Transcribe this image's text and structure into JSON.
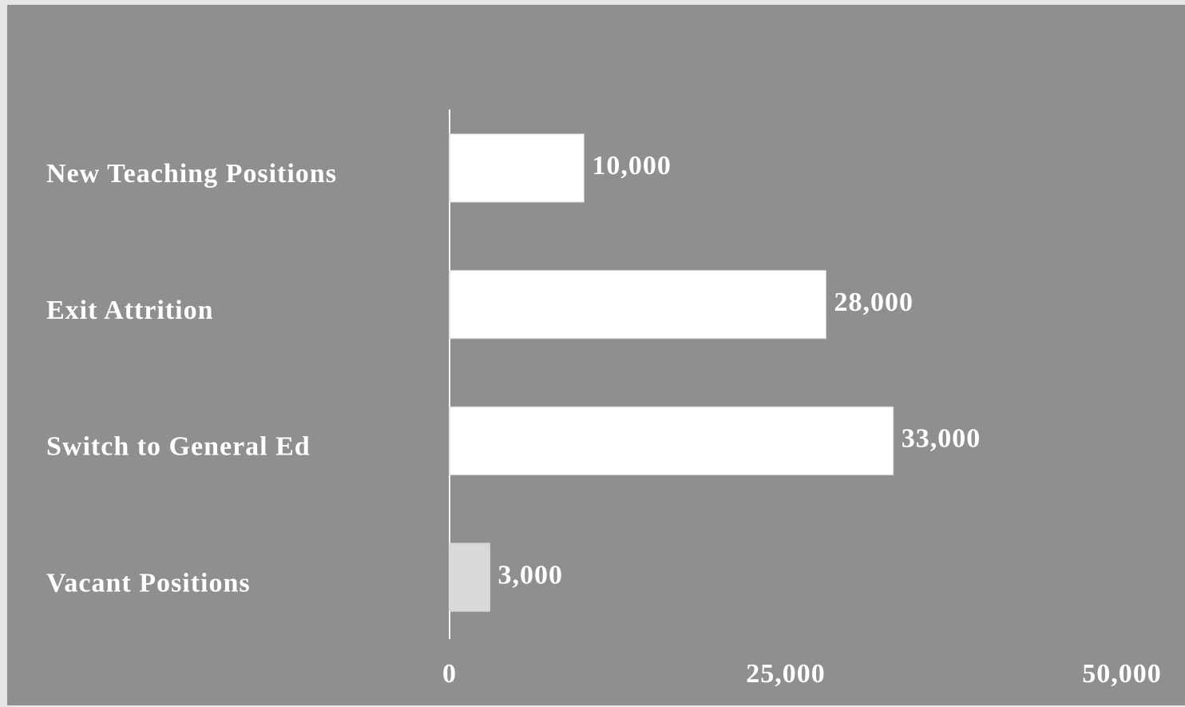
{
  "chart_data": {
    "type": "bar",
    "orientation": "horizontal",
    "categories": [
      "New Teaching Positions",
      "Exit Attrition",
      "Switch to General Ed",
      "Vacant Positions"
    ],
    "values": [
      10000,
      28000,
      33000,
      3000
    ],
    "value_labels": [
      "10,000",
      "28,000",
      "33,000",
      "3,000"
    ],
    "colors": [
      "#ffffff",
      "#ffffff",
      "#ffffff",
      "#d9d9d9"
    ],
    "xlim": [
      0,
      50000
    ],
    "xticks": [
      0,
      {
        "value": 25000,
        "label": "25,000"
      },
      {
        "value": 50000,
        "label": "50,000"
      }
    ],
    "grid": false
  }
}
